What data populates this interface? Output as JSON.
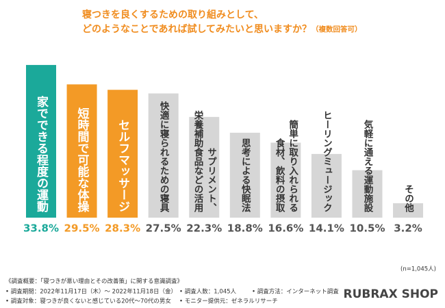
{
  "chart_data": {
    "type": "bar",
    "title_lines": [
      "寝つきを良くするための取り組みとして、",
      "どのようなことであれば試してみたいと思いますか？"
    ],
    "title_note": "（複数回答可）",
    "categories": [
      [
        "家でできる程度の運動"
      ],
      [
        "短時間で可能な体操"
      ],
      [
        "セルフマッサージ"
      ],
      [
        "快適に寝られるための寝具"
      ],
      [
        "サプリメント、",
        "栄養補助食品などの活用"
      ],
      [
        "思考による快眠法"
      ],
      [
        "簡単に取り入れられる",
        "食材、飲料の摂取"
      ],
      [
        "ヒーリングミュージック"
      ],
      [
        "気軽に通える運動施設"
      ],
      [
        "その他"
      ]
    ],
    "values": [
      33.8,
      29.5,
      28.3,
      27.5,
      22.3,
      18.8,
      16.6,
      14.1,
      10.5,
      3.2
    ],
    "value_labels": [
      "33.8%",
      "29.5%",
      "28.3%",
      "27.5%",
      "22.3%",
      "18.8%",
      "16.6%",
      "14.1%",
      "10.5%",
      "3.2%"
    ],
    "colors": [
      "#1ba99a",
      "#f39a26",
      "#f39a26",
      "#d6d6d6",
      "#d6d6d6",
      "#d6d6d6",
      "#d6d6d6",
      "#d6d6d6",
      "#d6d6d6",
      "#d6d6d6"
    ],
    "text_colors": [
      "#ffffff",
      "#ffffff",
      "#ffffff",
      "#333333",
      "#333333",
      "#333333",
      "#333333",
      "#333333",
      "#333333",
      "#333333"
    ],
    "value_label_colors": [
      "#1ba99a",
      "#f39a26",
      "#f39a26",
      "#555555",
      "#555555",
      "#555555",
      "#555555",
      "#555555",
      "#555555",
      "#555555"
    ],
    "sample_note": "(n=1,045人)",
    "footnotes": {
      "heading": "《調査概要：「寝つきが悪い理由とその改善策」に関する意識調査》",
      "period": "• 調査期間：2022年11月17日（木）～ 2022年11月18日（金）",
      "target": "• 調査対象：寝つきが良くないと感じている20代～70代の男女",
      "count": "• 調査人数：1,045人",
      "method": "• 調査方法：インターネット調査",
      "provider": "• モニター提供元：ゼネラルリサーチ"
    },
    "brand": "RUBRAX SHOP"
  }
}
